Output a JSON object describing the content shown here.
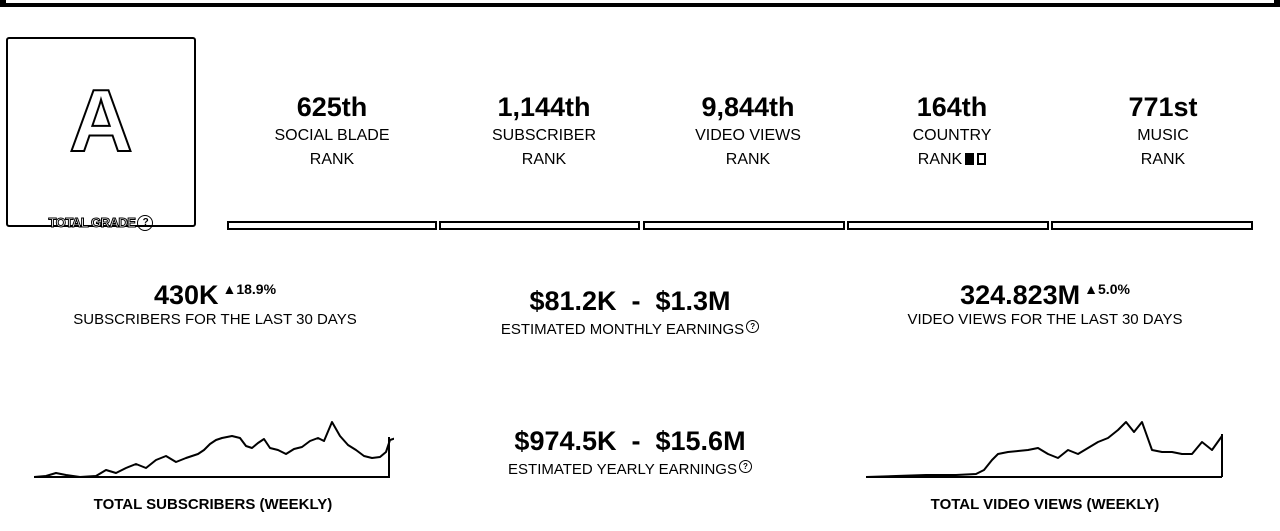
{
  "grade": {
    "letter": "A",
    "label": "TOTAL GRADE",
    "help": "?"
  },
  "ranks": [
    {
      "value": "625th",
      "line1": "SOCIAL BLADE",
      "line2": "RANK"
    },
    {
      "value": "1,144th",
      "line1": "SUBSCRIBER",
      "line2": "RANK"
    },
    {
      "value": "9,844th",
      "line1": "VIDEO VIEWS",
      "line2": "RANK"
    },
    {
      "value": "164th",
      "line1": "COUNTRY",
      "line2": "RANK"
    },
    {
      "value": "771st",
      "line1": "MUSIC",
      "line2": "RANK"
    }
  ],
  "subscribers_30d": {
    "value": "430K",
    "change": "18.9%",
    "label": "SUBSCRIBERS FOR THE LAST 30 DAYS"
  },
  "monthly_earnings": {
    "value": "$81.2K  -  $1.3M",
    "label": "ESTIMATED MONTHLY EARNINGS",
    "help": "?"
  },
  "views_30d": {
    "value": "324.823M",
    "change": "5.0%",
    "label": "VIDEO VIEWS FOR THE LAST 30 DAYS"
  },
  "yearly_earnings": {
    "value": "$974.5K  -  $15.6M",
    "label": "ESTIMATED YEARLY EARNINGS",
    "help": "?"
  },
  "charts": [
    {
      "title": "TOTAL SUBSCRIBERS (WEEKLY)"
    },
    {
      "title": "TOTAL VIDEO VIEWS (WEEKLY)"
    }
  ]
}
